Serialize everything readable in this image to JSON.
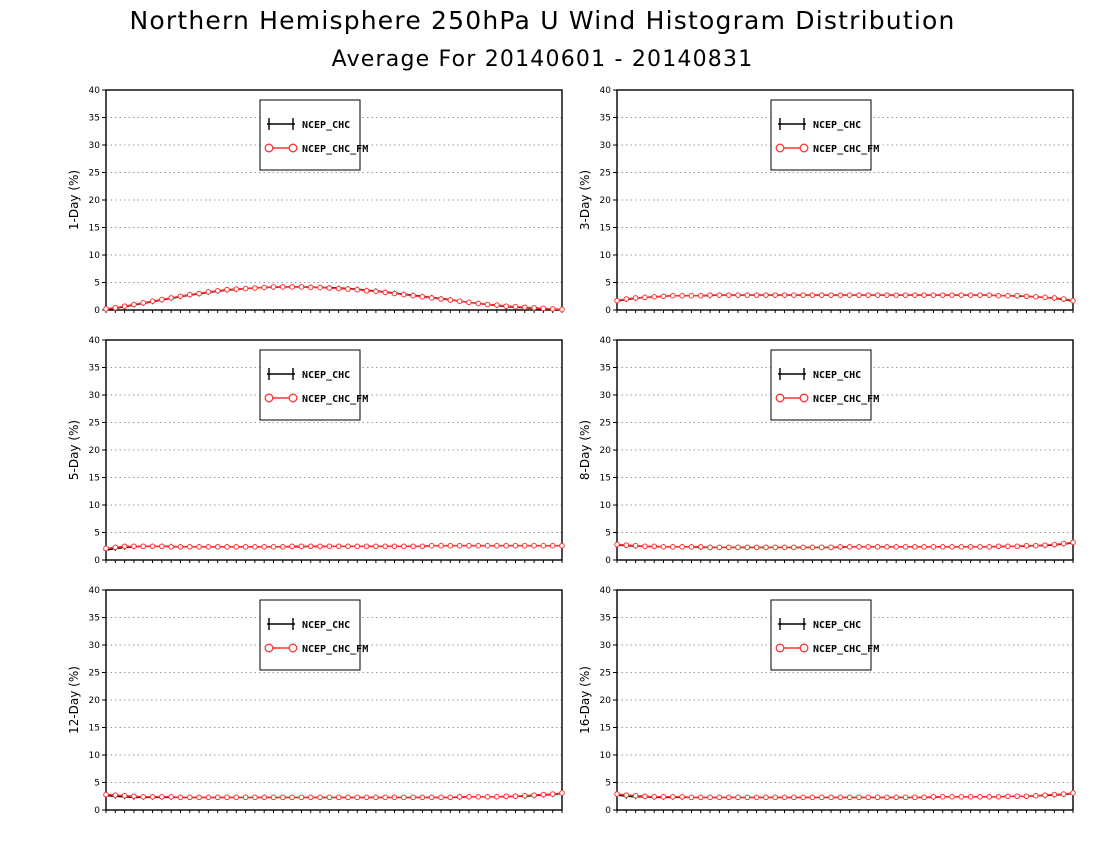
{
  "title": "Northern Hemisphere 250hPa U Wind Histogram Distribution",
  "subtitle": "Average For 20140601 - 20140831",
  "colors": {
    "series_1": "#000000",
    "series_2": "#ff3333",
    "grid": "#9a9a9a"
  },
  "chart_data": [
    {
      "type": "line",
      "ylabel": "1-Day (%)",
      "ylim": [
        0,
        40
      ],
      "yticks": [
        0,
        5,
        10,
        15,
        20,
        25,
        30,
        35,
        40
      ],
      "grid": "horizontal dotted",
      "legend_position": "top-center",
      "x": [
        1,
        2,
        3,
        4,
        5,
        6,
        7,
        8,
        9,
        10,
        11,
        12,
        13,
        14,
        15,
        16,
        17,
        18,
        19,
        20,
        21,
        22,
        23,
        24,
        25,
        26,
        27,
        28,
        29,
        30,
        31,
        32,
        33,
        34,
        35,
        36,
        37,
        38,
        39,
        40,
        41,
        42,
        43,
        44,
        45,
        46,
        47,
        48,
        49,
        50
      ],
      "series": [
        {
          "name": "NCEP_CHC",
          "marker": "cross",
          "values": [
            0.1,
            0.3,
            0.6,
            0.9,
            1.2,
            1.5,
            1.8,
            2.1,
            2.4,
            2.7,
            2.9,
            3.2,
            3.4,
            3.6,
            3.7,
            3.9,
            4.0,
            4.1,
            4.1,
            4.2,
            4.2,
            4.2,
            4.2,
            4.1,
            4.1,
            4.0,
            3.9,
            3.8,
            3.6,
            3.5,
            3.3,
            3.1,
            2.9,
            2.7,
            2.5,
            2.3,
            2.1,
            1.9,
            1.6,
            1.4,
            1.2,
            1.0,
            0.8,
            0.6,
            0.5,
            0.4,
            0.3,
            0.2,
            0.1,
            0.1
          ]
        },
        {
          "name": "NCEP_CHC_FM",
          "marker": "circle",
          "values": [
            0.2,
            0.4,
            0.7,
            1.0,
            1.3,
            1.6,
            1.9,
            2.2,
            2.5,
            2.8,
            3.0,
            3.3,
            3.5,
            3.7,
            3.8,
            3.9,
            4.0,
            4.1,
            4.2,
            4.2,
            4.2,
            4.2,
            4.1,
            4.1,
            4.0,
            3.9,
            3.8,
            3.7,
            3.5,
            3.4,
            3.2,
            3.0,
            2.8,
            2.6,
            2.4,
            2.2,
            2.0,
            1.8,
            1.6,
            1.4,
            1.2,
            1.0,
            0.9,
            0.7,
            0.6,
            0.5,
            0.4,
            0.3,
            0.2,
            0.1
          ]
        }
      ]
    },
    {
      "type": "line",
      "ylabel": "3-Day (%)",
      "ylim": [
        0,
        40
      ],
      "yticks": [
        0,
        5,
        10,
        15,
        20,
        25,
        30,
        35,
        40
      ],
      "grid": "horizontal dotted",
      "legend_position": "top-center",
      "x": [
        1,
        2,
        3,
        4,
        5,
        6,
        7,
        8,
        9,
        10,
        11,
        12,
        13,
        14,
        15,
        16,
        17,
        18,
        19,
        20,
        21,
        22,
        23,
        24,
        25,
        26,
        27,
        28,
        29,
        30,
        31,
        32,
        33,
        34,
        35,
        36,
        37,
        38,
        39,
        40,
        41,
        42,
        43,
        44,
        45,
        46,
        47,
        48,
        49,
        50
      ],
      "series": [
        {
          "name": "NCEP_CHC",
          "marker": "cross",
          "values": [
            1.6,
            1.9,
            2.1,
            2.3,
            2.4,
            2.5,
            2.6,
            2.6,
            2.6,
            2.6,
            2.6,
            2.7,
            2.7,
            2.7,
            2.7,
            2.7,
            2.7,
            2.7,
            2.7,
            2.7,
            2.7,
            2.7,
            2.7,
            2.7,
            2.7,
            2.7,
            2.7,
            2.7,
            2.7,
            2.7,
            2.7,
            2.7,
            2.7,
            2.7,
            2.7,
            2.7,
            2.7,
            2.7,
            2.7,
            2.7,
            2.7,
            2.6,
            2.6,
            2.5,
            2.5,
            2.4,
            2.3,
            2.1,
            1.9,
            1.6
          ]
        },
        {
          "name": "NCEP_CHC_FM",
          "marker": "circle",
          "values": [
            1.7,
            2.0,
            2.2,
            2.3,
            2.4,
            2.5,
            2.6,
            2.6,
            2.6,
            2.6,
            2.7,
            2.7,
            2.7,
            2.7,
            2.7,
            2.7,
            2.7,
            2.7,
            2.7,
            2.7,
            2.7,
            2.7,
            2.7,
            2.7,
            2.7,
            2.7,
            2.7,
            2.7,
            2.7,
            2.7,
            2.7,
            2.7,
            2.7,
            2.7,
            2.7,
            2.7,
            2.7,
            2.7,
            2.7,
            2.7,
            2.7,
            2.6,
            2.6,
            2.6,
            2.5,
            2.4,
            2.3,
            2.2,
            2.0,
            1.7
          ]
        }
      ]
    },
    {
      "type": "line",
      "ylabel": "5-Day (%)",
      "ylim": [
        0,
        40
      ],
      "yticks": [
        0,
        5,
        10,
        15,
        20,
        25,
        30,
        35,
        40
      ],
      "grid": "horizontal dotted",
      "legend_position": "top-center",
      "x": [
        1,
        2,
        3,
        4,
        5,
        6,
        7,
        8,
        9,
        10,
        11,
        12,
        13,
        14,
        15,
        16,
        17,
        18,
        19,
        20,
        21,
        22,
        23,
        24,
        25,
        26,
        27,
        28,
        29,
        30,
        31,
        32,
        33,
        34,
        35,
        36,
        37,
        38,
        39,
        40,
        41,
        42,
        43,
        44,
        45,
        46,
        47,
        48,
        49,
        50
      ],
      "series": [
        {
          "name": "NCEP_CHC",
          "marker": "cross",
          "values": [
            1.8,
            2.1,
            2.3,
            2.4,
            2.5,
            2.5,
            2.5,
            2.5,
            2.4,
            2.4,
            2.4,
            2.4,
            2.4,
            2.4,
            2.4,
            2.4,
            2.4,
            2.4,
            2.4,
            2.4,
            2.4,
            2.4,
            2.5,
            2.4,
            2.5,
            2.5,
            2.5,
            2.5,
            2.5,
            2.5,
            2.5,
            2.5,
            2.5,
            2.5,
            2.5,
            2.6,
            2.6,
            2.6,
            2.6,
            2.6,
            2.6,
            2.6,
            2.6,
            2.6,
            2.6,
            2.6,
            2.6,
            2.6,
            2.6,
            2.6
          ]
        },
        {
          "name": "NCEP_CHC_FM",
          "marker": "circle",
          "values": [
            2.1,
            2.3,
            2.5,
            2.5,
            2.5,
            2.5,
            2.5,
            2.4,
            2.4,
            2.4,
            2.4,
            2.4,
            2.4,
            2.4,
            2.4,
            2.4,
            2.4,
            2.4,
            2.4,
            2.4,
            2.5,
            2.5,
            2.5,
            2.5,
            2.5,
            2.5,
            2.5,
            2.5,
            2.5,
            2.5,
            2.5,
            2.5,
            2.5,
            2.5,
            2.5,
            2.6,
            2.6,
            2.6,
            2.6,
            2.6,
            2.6,
            2.6,
            2.6,
            2.6,
            2.6,
            2.6,
            2.6,
            2.6,
            2.6,
            2.6
          ]
        }
      ]
    },
    {
      "type": "line",
      "ylabel": "8-Day (%)",
      "ylim": [
        0,
        40
      ],
      "yticks": [
        0,
        5,
        10,
        15,
        20,
        25,
        30,
        35,
        40
      ],
      "grid": "horizontal dotted",
      "legend_position": "top-center",
      "x": [
        1,
        2,
        3,
        4,
        5,
        6,
        7,
        8,
        9,
        10,
        11,
        12,
        13,
        14,
        15,
        16,
        17,
        18,
        19,
        20,
        21,
        22,
        23,
        24,
        25,
        26,
        27,
        28,
        29,
        30,
        31,
        32,
        33,
        34,
        35,
        36,
        37,
        38,
        39,
        40,
        41,
        42,
        43,
        44,
        45,
        46,
        47,
        48,
        49,
        50
      ],
      "series": [
        {
          "name": "NCEP_CHC",
          "marker": "cross",
          "values": [
            2.7,
            2.6,
            2.5,
            2.5,
            2.4,
            2.4,
            2.4,
            2.4,
            2.4,
            2.3,
            2.3,
            2.3,
            2.3,
            2.3,
            2.3,
            2.3,
            2.3,
            2.3,
            2.3,
            2.3,
            2.3,
            2.3,
            2.3,
            2.3,
            2.3,
            2.4,
            2.4,
            2.4,
            2.4,
            2.4,
            2.4,
            2.4,
            2.4,
            2.4,
            2.4,
            2.4,
            2.4,
            2.4,
            2.4,
            2.4,
            2.4,
            2.4,
            2.5,
            2.5,
            2.5,
            2.6,
            2.6,
            2.7,
            2.9,
            3.1
          ]
        },
        {
          "name": "NCEP_CHC_FM",
          "marker": "circle",
          "values": [
            2.8,
            2.7,
            2.6,
            2.5,
            2.5,
            2.4,
            2.4,
            2.4,
            2.4,
            2.4,
            2.3,
            2.3,
            2.3,
            2.3,
            2.3,
            2.3,
            2.3,
            2.3,
            2.3,
            2.3,
            2.3,
            2.3,
            2.3,
            2.3,
            2.4,
            2.4,
            2.4,
            2.4,
            2.4,
            2.4,
            2.4,
            2.4,
            2.4,
            2.4,
            2.4,
            2.4,
            2.4,
            2.4,
            2.4,
            2.4,
            2.4,
            2.5,
            2.5,
            2.5,
            2.6,
            2.6,
            2.7,
            2.8,
            3.0,
            3.2
          ]
        }
      ]
    },
    {
      "type": "line",
      "ylabel": "12-Day (%)",
      "ylim": [
        0,
        40
      ],
      "yticks": [
        0,
        5,
        10,
        15,
        20,
        25,
        30,
        35,
        40
      ],
      "grid": "horizontal dotted",
      "legend_position": "top-center",
      "x": [
        1,
        2,
        3,
        4,
        5,
        6,
        7,
        8,
        9,
        10,
        11,
        12,
        13,
        14,
        15,
        16,
        17,
        18,
        19,
        20,
        21,
        22,
        23,
        24,
        25,
        26,
        27,
        28,
        29,
        30,
        31,
        32,
        33,
        34,
        35,
        36,
        37,
        38,
        39,
        40,
        41,
        42,
        43,
        44,
        45,
        46,
        47,
        48,
        49,
        50
      ],
      "series": [
        {
          "name": "NCEP_CHC",
          "marker": "cross",
          "values": [
            2.6,
            2.5,
            2.4,
            2.3,
            2.3,
            2.3,
            2.3,
            2.3,
            2.3,
            2.3,
            2.3,
            2.3,
            2.3,
            2.3,
            2.3,
            2.3,
            2.3,
            2.3,
            2.3,
            2.3,
            2.3,
            2.3,
            2.3,
            2.3,
            2.3,
            2.3,
            2.3,
            2.3,
            2.3,
            2.3,
            2.3,
            2.3,
            2.3,
            2.3,
            2.3,
            2.3,
            2.3,
            2.3,
            2.3,
            2.4,
            2.4,
            2.4,
            2.4,
            2.4,
            2.5,
            2.5,
            2.6,
            2.7,
            2.8,
            3.0
          ]
        },
        {
          "name": "NCEP_CHC_FM",
          "marker": "circle",
          "values": [
            2.8,
            2.7,
            2.6,
            2.5,
            2.4,
            2.4,
            2.4,
            2.4,
            2.3,
            2.3,
            2.3,
            2.3,
            2.3,
            2.3,
            2.3,
            2.3,
            2.3,
            2.3,
            2.3,
            2.3,
            2.3,
            2.3,
            2.3,
            2.3,
            2.3,
            2.3,
            2.3,
            2.3,
            2.3,
            2.3,
            2.3,
            2.3,
            2.3,
            2.3,
            2.3,
            2.3,
            2.3,
            2.3,
            2.4,
            2.4,
            2.4,
            2.4,
            2.4,
            2.5,
            2.5,
            2.6,
            2.7,
            2.8,
            2.9,
            3.1
          ]
        }
      ]
    },
    {
      "type": "line",
      "ylabel": "16-Day (%)",
      "ylim": [
        0,
        40
      ],
      "yticks": [
        0,
        5,
        10,
        15,
        20,
        25,
        30,
        35,
        40
      ],
      "grid": "horizontal dotted",
      "legend_position": "top-center",
      "x": [
        1,
        2,
        3,
        4,
        5,
        6,
        7,
        8,
        9,
        10,
        11,
        12,
        13,
        14,
        15,
        16,
        17,
        18,
        19,
        20,
        21,
        22,
        23,
        24,
        25,
        26,
        27,
        28,
        29,
        30,
        31,
        32,
        33,
        34,
        35,
        36,
        37,
        38,
        39,
        40,
        41,
        42,
        43,
        44,
        45,
        46,
        47,
        48,
        49,
        50
      ],
      "series": [
        {
          "name": "NCEP_CHC",
          "marker": "cross",
          "values": [
            2.7,
            2.5,
            2.4,
            2.4,
            2.3,
            2.3,
            2.3,
            2.3,
            2.3,
            2.3,
            2.3,
            2.3,
            2.3,
            2.3,
            2.3,
            2.3,
            2.3,
            2.3,
            2.3,
            2.3,
            2.3,
            2.3,
            2.3,
            2.3,
            2.3,
            2.3,
            2.3,
            2.3,
            2.3,
            2.3,
            2.3,
            2.3,
            2.3,
            2.3,
            2.3,
            2.4,
            2.4,
            2.4,
            2.4,
            2.4,
            2.4,
            2.4,
            2.5,
            2.5,
            2.5,
            2.6,
            2.6,
            2.7,
            2.8,
            3.0
          ]
        },
        {
          "name": "NCEP_CHC_FM",
          "marker": "circle",
          "values": [
            2.9,
            2.7,
            2.6,
            2.5,
            2.4,
            2.4,
            2.4,
            2.4,
            2.3,
            2.3,
            2.3,
            2.3,
            2.3,
            2.3,
            2.3,
            2.3,
            2.3,
            2.3,
            2.3,
            2.3,
            2.3,
            2.3,
            2.3,
            2.3,
            2.3,
            2.3,
            2.3,
            2.3,
            2.3,
            2.3,
            2.3,
            2.3,
            2.3,
            2.3,
            2.4,
            2.4,
            2.4,
            2.4,
            2.4,
            2.4,
            2.4,
            2.4,
            2.5,
            2.5,
            2.5,
            2.6,
            2.7,
            2.8,
            2.9,
            3.1
          ]
        }
      ]
    }
  ]
}
